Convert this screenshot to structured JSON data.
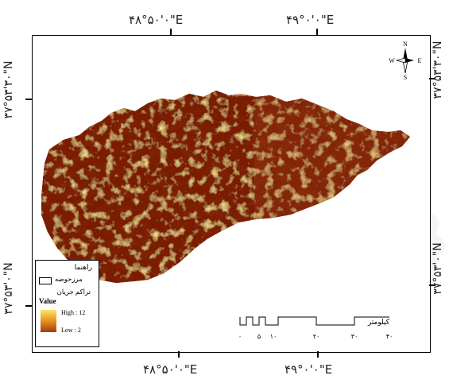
{
  "coords": {
    "top_left": "۴۸°۵۰'۰\"E",
    "top_right": "۴۹°۰'۰\"E",
    "bottom_left": "۴۸°۵۰'۰\"E",
    "bottom_right": "۴۹°۰'۰\"E",
    "left_upper": "۳۷°۵۳'۳۰\"N",
    "left_lower": "۳۷°۵۳'۰\"N",
    "right_upper": "۳۷°۵۳'۳۰\"N",
    "right_lower": "۳۷°۵۳'۰\"N"
  },
  "legend": {
    "title": "راهنما",
    "boundary_label": "مرزحوضه",
    "flow_title": "تراکم جریان",
    "value_label": "Value",
    "high_label": "High : 12",
    "low_label": "Low : 2"
  },
  "scale": {
    "unit": "کیلومتر",
    "ticks": [
      "۰",
      "۵",
      "۱۰",
      "۲۰",
      "۳۰",
      "۴۰"
    ]
  },
  "north": {
    "n": "N",
    "s": "S",
    "e": "E",
    "w": "W"
  },
  "colors": {
    "ramp_high": "#ffe36a",
    "ramp_low": "#7a1a06",
    "frame": "#000000"
  }
}
